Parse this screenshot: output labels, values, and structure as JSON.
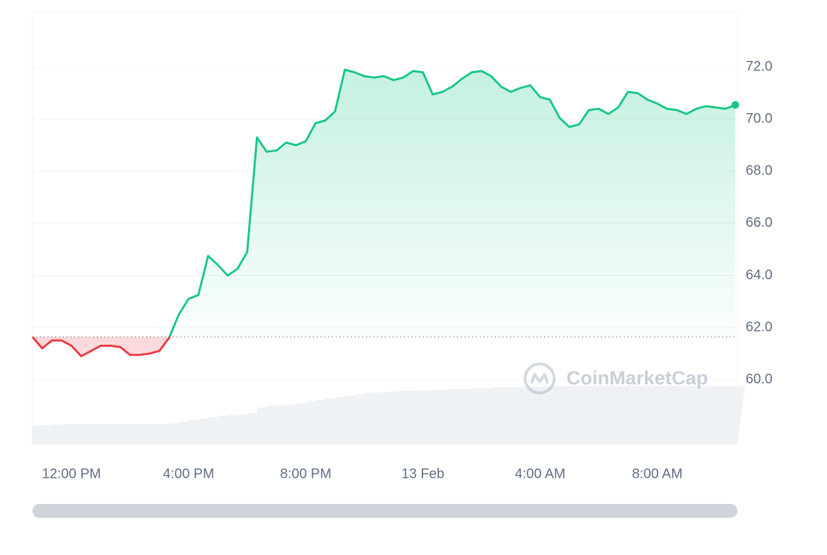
{
  "chart_data": {
    "type": "line",
    "categories": [
      null,
      null,
      null,
      null,
      "12:00 PM",
      null,
      null,
      null,
      null,
      null,
      null,
      null,
      null,
      null,
      null,
      null,
      "4:00 PM",
      null,
      null,
      null,
      null,
      null,
      null,
      null,
      null,
      null,
      null,
      null,
      "8:00 PM",
      null,
      null,
      null,
      null,
      null,
      null,
      null,
      null,
      null,
      null,
      null,
      "13 Feb",
      null,
      null,
      null,
      null,
      null,
      null,
      null,
      null,
      null,
      null,
      null,
      "4:00 AM",
      null,
      null,
      null,
      null,
      null,
      null,
      null,
      null,
      null,
      null,
      null,
      "8:00 AM",
      null,
      null,
      null,
      null,
      null,
      null,
      null,
      null
    ],
    "series": [
      {
        "color_up": "#16c784",
        "color_down": "#ea3943",
        "values": [
          61.64,
          61.2,
          61.5,
          61.5,
          61.3,
          60.9,
          61.1,
          61.3,
          61.3,
          61.25,
          60.95,
          60.95,
          61.0,
          61.1,
          61.6,
          62.5,
          63.1,
          63.25,
          64.75,
          64.4,
          64.0,
          64.25,
          64.9,
          69.3,
          68.75,
          68.8,
          69.1,
          69.0,
          69.15,
          69.85,
          69.95,
          70.3,
          71.9,
          71.8,
          71.65,
          71.6,
          71.65,
          71.5,
          71.6,
          71.85,
          71.8,
          70.95,
          71.05,
          71.25,
          71.55,
          71.8,
          71.85,
          71.65,
          71.25,
          71.05,
          71.2,
          71.3,
          70.85,
          70.75,
          70.05,
          69.7,
          69.8,
          70.35,
          70.4,
          70.2,
          70.45,
          71.05,
          71.0,
          70.75,
          70.6,
          70.4,
          70.35,
          70.2,
          70.4,
          70.5,
          70.45,
          70.4,
          70.55
        ]
      }
    ],
    "baseline": 61.64,
    "volume": {
      "color": "#eff2f5",
      "values": [
        28,
        28,
        29,
        30,
        30,
        30,
        30,
        30,
        30,
        30,
        30,
        30,
        30,
        30,
        31,
        33,
        36,
        38,
        40,
        42,
        43,
        44,
        46,
        54,
        56,
        57,
        58,
        60,
        63,
        65,
        67,
        69,
        71,
        73,
        75,
        76,
        77,
        78,
        78,
        79,
        79,
        80,
        80,
        81,
        81,
        82,
        82,
        83,
        83,
        83,
        84,
        84,
        84,
        85,
        85,
        85,
        85,
        85,
        85,
        85,
        85,
        85,
        85,
        85,
        85,
        85,
        85,
        85,
        85,
        85,
        85,
        85,
        85
      ]
    },
    "ylim": [
      57.5,
      74.1
    ],
    "yticks": [
      {
        "value": 60,
        "label": "60.0"
      },
      {
        "value": 62,
        "label": "62.0"
      },
      {
        "value": 64,
        "label": "64.0"
      },
      {
        "value": 66,
        "label": "66.0"
      },
      {
        "value": 68,
        "label": "68.0"
      },
      {
        "value": 70,
        "label": "70.0"
      },
      {
        "value": 72,
        "label": "72.0"
      }
    ],
    "grid": true,
    "watermark": "CoinMarketCap"
  }
}
